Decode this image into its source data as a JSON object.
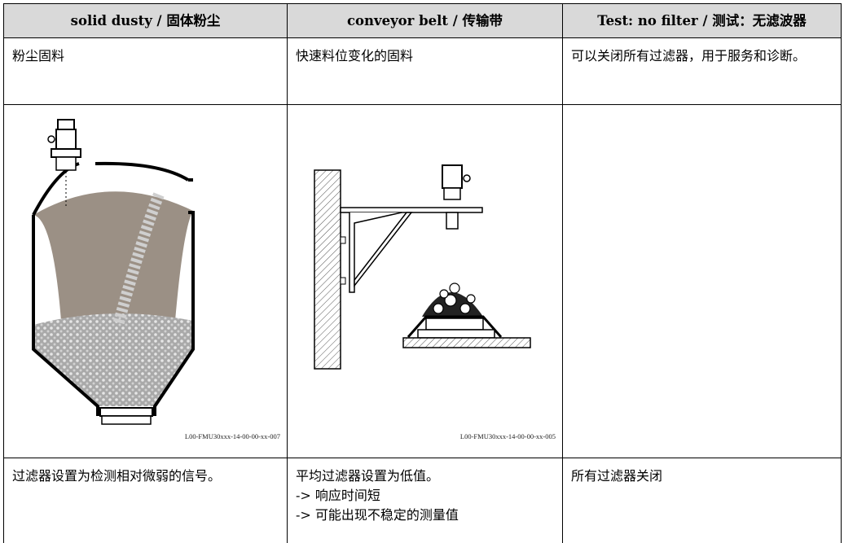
{
  "table": {
    "header": [
      "solid dusty / 固体粉尘",
      "conveyor belt / 传输带",
      "Test: no filter / 测试：无滤波器"
    ],
    "descriptions": [
      "粉尘固料",
      "快速料位变化的固料",
      "可以关闭所有过滤器，用于服务和诊断。"
    ],
    "figure_captions": [
      "L00-FMU30xxx-14-00-00-xx-007",
      "L00-FMU30xxx-14-00-00-xx-005"
    ],
    "notes": [
      [
        "过滤器设置为检测相对微弱的信号。"
      ],
      [
        "平均过滤器设置为低值。",
        "-> 响应时间短",
        "-> 可能出现不稳定的测量值"
      ],
      [
        "所有过滤器关闭"
      ]
    ]
  }
}
